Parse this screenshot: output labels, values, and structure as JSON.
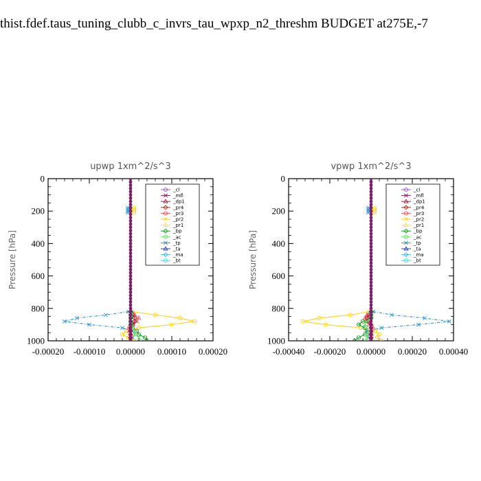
{
  "page": {
    "title": "thist.fdef.taus_tuning_clubb_c_invrs_tau_wpxp_n2_threshm  BUDGET at275E,-7"
  },
  "legend_entries": [
    "_cl",
    "_mfl",
    "_dp1",
    "_pr4",
    "_pr3",
    "_pr2",
    "_pr1",
    "_bp",
    "_ac",
    "_tp",
    "_ta",
    "_ma",
    "_bt"
  ],
  "series_colors": {
    "_cl": "#9b59d0",
    "_mfl": "#7a1f6a",
    "_dp1": "#b0102f",
    "_pr4": "#d01818",
    "_pr3": "#ee5a5a",
    "_pr2": "#ffd21a",
    "_pr1": "#f0ea40",
    "_bp": "#1a9a2a",
    "_ac": "#66e066",
    "_tp": "#2a8fcc",
    "_ta": "#2a3acc",
    "_ma": "#4ab0e0",
    "_bt": "#2ae0e0"
  },
  "chart_data": [
    {
      "type": "line",
      "title": "upwp   1xm^2/s^3",
      "ylabel": "Pressure [hPa]",
      "xlim": [
        -0.0002,
        0.0002
      ],
      "ylim": [
        1000,
        0
      ],
      "x_tick_labels": [
        "-0.00020",
        "-0.00010",
        "0.00000",
        "0.00010",
        "0.00020"
      ],
      "x_ticks": [
        -0.0002,
        -0.0001,
        0,
        0.0001,
        0.0002
      ],
      "y_tick_labels": [
        "0",
        "200",
        "400",
        "600",
        "800",
        "1000"
      ],
      "y_ticks": [
        0,
        200,
        400,
        600,
        800,
        1000
      ],
      "legend_position": "top-right",
      "pressure_levels": [
        820,
        840,
        860,
        880,
        900,
        920,
        940,
        960,
        980,
        1000
      ],
      "series": [
        {
          "name": "_pr2",
          "x": [
            5e-06,
            6e-05,
            0.00012,
            0.000155,
            0.0001,
            2e-05,
            -1e-05,
            -2e-05,
            -5e-06,
            1e-05
          ]
        },
        {
          "name": "_tp",
          "x": [
            -5e-06,
            -6e-05,
            -0.00013,
            -0.00016,
            -0.0001,
            -2e-05,
            5e-06,
            1e-05,
            5e-06,
            0
          ]
        },
        {
          "name": "_pr3",
          "x": [
            3e-06,
            1e-05,
            2e-05,
            1.5e-05,
            5e-06,
            -5e-06,
            -3e-06,
            0,
            0,
            0
          ]
        },
        {
          "name": "_dp1",
          "x": [
            0,
            5e-06,
            1e-05,
            1e-05,
            5e-06,
            0,
            0,
            0,
            0,
            0
          ]
        },
        {
          "name": "_bp",
          "x": [
            0,
            0,
            0,
            0,
            0,
            5e-06,
            1.5e-05,
            2e-05,
            3.5e-05,
            4e-05
          ]
        },
        {
          "name": "_ac",
          "x": [
            0,
            0,
            0,
            0,
            0,
            5e-06,
            1e-05,
            1e-05,
            2e-05,
            2.5e-05
          ]
        }
      ]
    },
    {
      "type": "line",
      "title": "vpwp   1xm^2/s^3",
      "ylabel": "Pressure [hPa]",
      "xlim": [
        -0.0004,
        0.0004
      ],
      "ylim": [
        1000,
        0
      ],
      "x_tick_labels": [
        "-0.00040",
        "-0.00020",
        "0.00000",
        "0.00020",
        "0.00040"
      ],
      "x_ticks": [
        -0.0004,
        -0.0002,
        0,
        0.0002,
        0.0004
      ],
      "y_tick_labels": [
        "0",
        "200",
        "400",
        "600",
        "800",
        "1000"
      ],
      "y_ticks": [
        0,
        200,
        400,
        600,
        800,
        1000
      ],
      "legend_position": "top-right",
      "pressure_levels": [
        820,
        840,
        860,
        880,
        900,
        920,
        940,
        960,
        980,
        1000
      ],
      "series": [
        {
          "name": "_pr2",
          "x": [
            -1e-05,
            -0.0001,
            -0.00025,
            -0.00033,
            -0.00022,
            -5e-05,
            2e-05,
            4e-05,
            3e-05,
            5e-05
          ]
        },
        {
          "name": "_tp",
          "x": [
            1e-05,
            0.0001,
            0.00026,
            0.00038,
            0.00023,
            5e-05,
            -2e-05,
            -1e-05,
            -1e-05,
            0
          ]
        },
        {
          "name": "_pr3",
          "x": [
            0,
            -2e-05,
            -3e-05,
            -2e-05,
            -1e-05,
            1e-05,
            0,
            0,
            0,
            0
          ]
        },
        {
          "name": "_dp1",
          "x": [
            0,
            -1e-05,
            -2e-05,
            -1.5e-05,
            0,
            0,
            0,
            0,
            0,
            0
          ]
        },
        {
          "name": "_bp",
          "x": [
            0,
            0,
            0,
            -4e-05,
            -6e-05,
            -3e-05,
            -2e-05,
            -3e-05,
            -6e-05,
            -8e-05
          ]
        },
        {
          "name": "_ac",
          "x": [
            0,
            0,
            0,
            -2e-05,
            -3e-05,
            -2e-05,
            -1e-05,
            -2e-05,
            -2e-05,
            -3e-05
          ]
        }
      ]
    }
  ]
}
